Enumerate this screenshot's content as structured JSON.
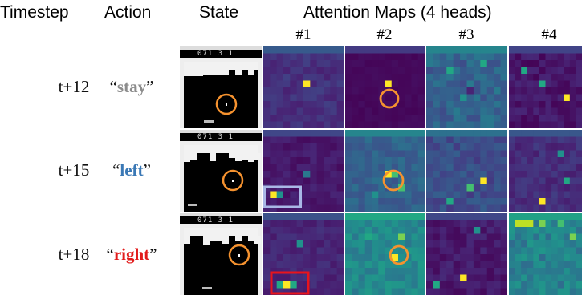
{
  "headers": {
    "timestep": "Timestep",
    "action": "Action",
    "state": "State",
    "attention": "Attention Maps (4 heads)",
    "heads": [
      "#1",
      "#2",
      "#3",
      "#4"
    ]
  },
  "rows": [
    {
      "timestep": "t+12",
      "action": "stay",
      "action_color": "#8c8c8c",
      "state_score": "071 3 1"
    },
    {
      "timestep": "t+15",
      "action": "left",
      "action_color": "#3a78b5",
      "state_score": "071 3 1"
    },
    {
      "timestep": "t+18",
      "action": "right",
      "action_color": "#e21b1b",
      "state_score": "071 3 1"
    }
  ],
  "colors": {
    "highlight_circle": "#f5922f",
    "left_box": "#a9b8e6",
    "right_box": "#e8141c",
    "viridis_dark": "#440154",
    "viridis_yellow": "#fde725"
  }
}
